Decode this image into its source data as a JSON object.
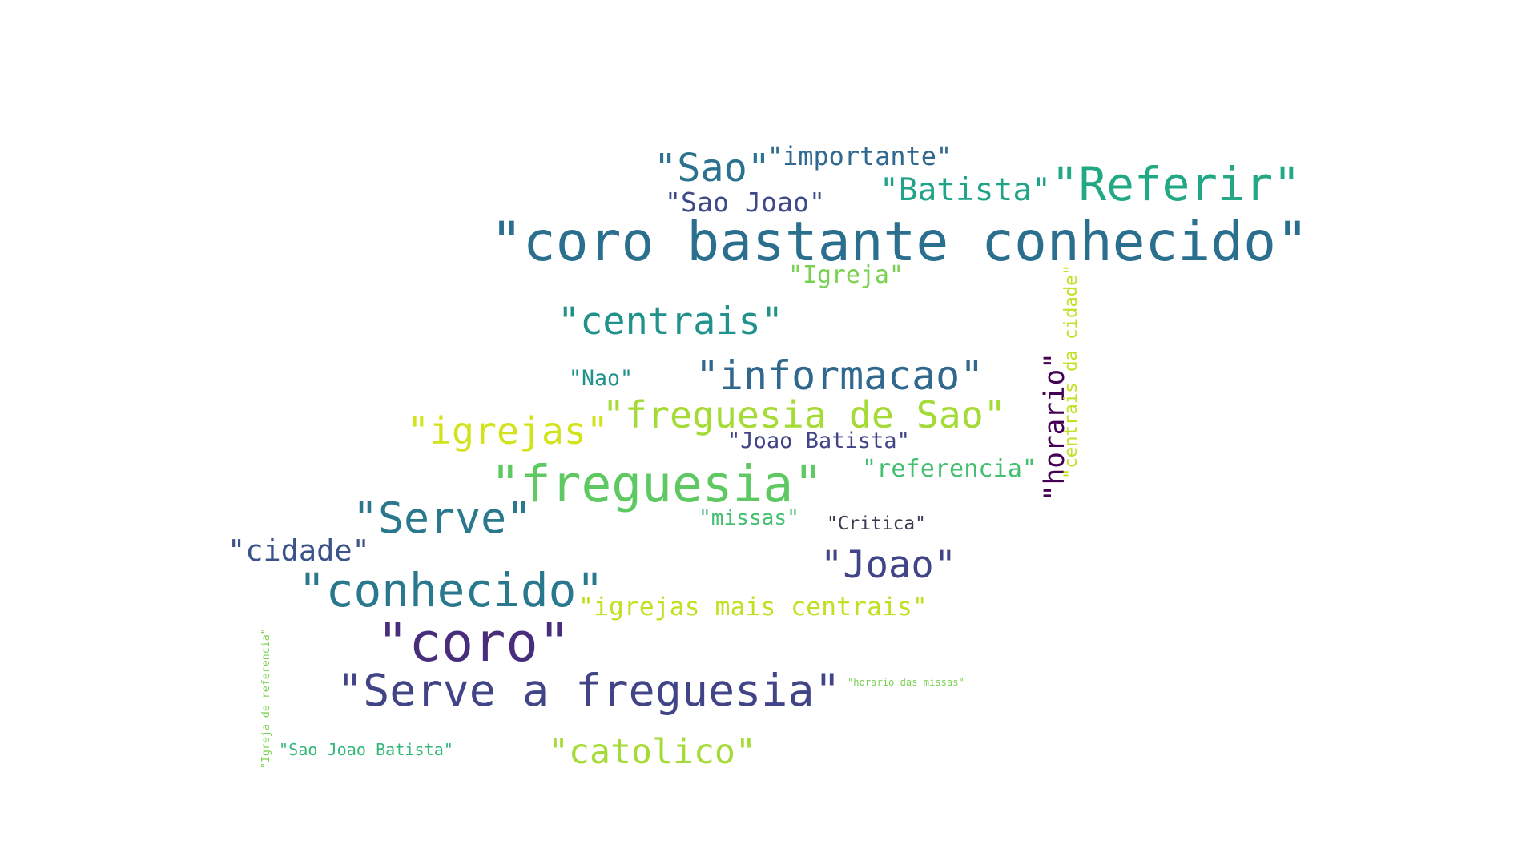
{
  "words": [
    {
      "text": "\"coro bastante conhecido\"",
      "color": "#2b6f8e"
    },
    {
      "text": "\"freguesia\"",
      "color": "#5ec962"
    },
    {
      "text": "\"coro\"",
      "color": "#472d7b"
    },
    {
      "text": "\"conhecido\"",
      "color": "#2a788e"
    },
    {
      "text": "\"Serve a freguesia\"",
      "color": "#414487"
    },
    {
      "text": "\"Referir\"",
      "color": "#22a884"
    },
    {
      "text": "\"informacao\"",
      "color": "#31688e"
    },
    {
      "text": "\"freguesia de Sao\"",
      "color": "#a5db36"
    },
    {
      "text": "\"Serve\"",
      "color": "#2a788e"
    },
    {
      "text": "\"igrejas\"",
      "color": "#d2e21b"
    },
    {
      "text": "\"centrais\"",
      "color": "#21918c"
    },
    {
      "text": "\"catolico\"",
      "color": "#a5db36"
    },
    {
      "text": "\"Sao\"",
      "color": "#2c728e"
    },
    {
      "text": "\"Joao\"",
      "color": "#414487"
    },
    {
      "text": "\"horario\"",
      "color": "#440154"
    },
    {
      "text": "\"Batista\"",
      "color": "#20a386"
    },
    {
      "text": "\"cidade\"",
      "color": "#3b528b"
    },
    {
      "text": "\"igrejas mais centrais\"",
      "color": "#c2df23"
    },
    {
      "text": "\"importante\"",
      "color": "#31688e"
    },
    {
      "text": "\"Sao Joao\"",
      "color": "#3e4a89"
    },
    {
      "text": "\"Igreja\"",
      "color": "#7ad151"
    },
    {
      "text": "\"referencia\"",
      "color": "#44bf70"
    },
    {
      "text": "\"Joao Batista\"",
      "color": "#414487"
    },
    {
      "text": "\"centrais da cidade\"",
      "color": "#c2df23"
    },
    {
      "text": "\"missas\"",
      "color": "#44bf70"
    },
    {
      "text": "\"Nao\"",
      "color": "#21918c"
    },
    {
      "text": "\"Sao Joao Batista\"",
      "color": "#35b779"
    },
    {
      "text": "\"Critica\"",
      "color": "#3b3b4f"
    },
    {
      "text": "\"horario das missas\"",
      "color": "#7ad151"
    },
    {
      "text": "\"Igreja de referencia\"",
      "color": "#7ad151"
    }
  ]
}
